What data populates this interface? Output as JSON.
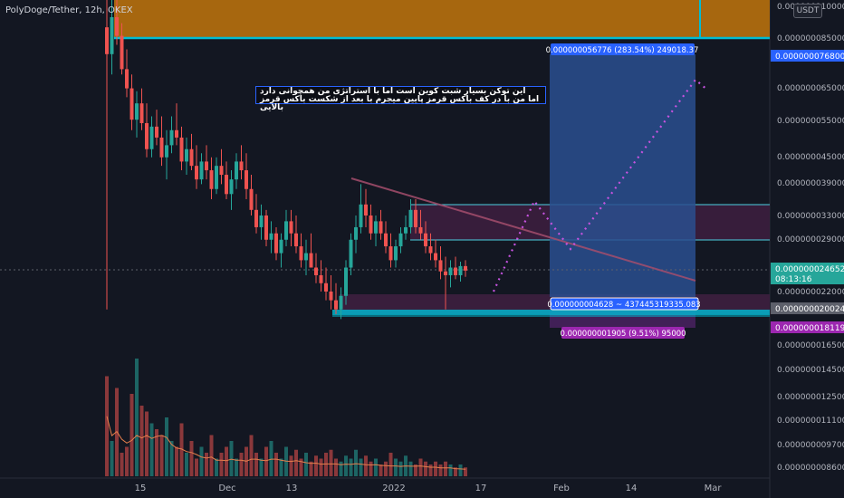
{
  "header": {
    "symbol_line": "PolyDoge/Tether, 12h, OKEX",
    "currency_button": "USDT"
  },
  "annotation": {
    "line1": "این توکن بسیار شبت کوین است اما با استراتژی من همچوانی دارد",
    "line2": "اما من با در کف باکس قرمز پایین میجرم با بعد از شکست باکس قرمز بالایی"
  },
  "colors": {
    "background": "#131722",
    "up": "#26a69a",
    "down": "#ef5350",
    "orange_box": "#b8700d",
    "teal_line": "#00bcd4",
    "blue_box": "#2a4f8f",
    "purple_box": "#3e1f3f",
    "dotted_path": "#c653e0",
    "trendline": "#a54e6d",
    "volume_ma": "#e57f4c"
  },
  "chart_data": {
    "type": "candlestick",
    "interval": "12h",
    "price_axis": {
      "scale": "log",
      "tick_labels": [
        "0.000000110000",
        "0.000000085000",
        "0.000000065000",
        "0.000000055000",
        "0.000000045000",
        "0.000000039000",
        "0.000000033000",
        "0.000000029000",
        "0.000000022000",
        "0.000000016500",
        "0.000000014500",
        "0.000000012500",
        "0.000000011100",
        "0.000000009700",
        "0.000000008600"
      ]
    },
    "price_tags": [
      {
        "label": "0.000000076800",
        "color": "#2962ff"
      },
      {
        "label": "0.000000024652",
        "color": "#26a69a",
        "countdown": "08:13:16"
      },
      {
        "label": "0.000000020024",
        "color": "#5d606b"
      },
      {
        "label": "0.000000018119",
        "color": "#9c27b0"
      }
    ],
    "time_axis": [
      "15",
      "Dec",
      "13",
      "2022",
      "17",
      "Feb",
      "14",
      "Mar"
    ],
    "measure_labels": {
      "upper": "0.000000056776 (283.54%) 249018.37",
      "middle": "0.000000004628 ~ 437445319335.083",
      "lower": "0.000000001905 (9.51%) 95000"
    },
    "candles": [
      [
        9e-08,
        1.15e-07,
        2e-08,
        7.8e-08
      ],
      [
        7.8e-08,
        1.05e-07,
        7e-08,
        9.5e-08
      ],
      [
        9.5e-08,
        1.1e-07,
        8.2e-08,
        8.6e-08
      ],
      [
        8.6e-08,
        9.2e-08,
        7e-08,
        7.2e-08
      ],
      [
        7.2e-08,
        8e-08,
        6.2e-08,
        6.5e-08
      ],
      [
        6.5e-08,
        7e-08,
        5.2e-08,
        5.5e-08
      ],
      [
        5.5e-08,
        6.4e-08,
        5e-08,
        6e-08
      ],
      [
        6e-08,
        6.5e-08,
        5.2e-08,
        5.4e-08
      ],
      [
        5.4e-08,
        6e-08,
        4.5e-08,
        4.7e-08
      ],
      [
        4.7e-08,
        5.6e-08,
        4.5e-08,
        5.3e-08
      ],
      [
        5.3e-08,
        5.8e-08,
        4.8e-08,
        5e-08
      ],
      [
        5e-08,
        5.6e-08,
        4.3e-08,
        4.5e-08
      ],
      [
        4.5e-08,
        5.2e-08,
        4e-08,
        4.8e-08
      ],
      [
        4.8e-08,
        5.6e-08,
        4.6e-08,
        5.2e-08
      ],
      [
        5.2e-08,
        6e-08,
        4.8e-08,
        5e-08
      ],
      [
        5e-08,
        5.3e-08,
        4.2e-08,
        4.4e-08
      ],
      [
        4.4e-08,
        5e-08,
        4.1e-08,
        4.7e-08
      ],
      [
        4.7e-08,
        5.1e-08,
        4.2e-08,
        4.3e-08
      ],
      [
        4.3e-08,
        4.8e-08,
        3.8e-08,
        4e-08
      ],
      [
        4e-08,
        4.6e-08,
        3.9e-08,
        4.4e-08
      ],
      [
        4.4e-08,
        4.8e-08,
        4e-08,
        4.2e-08
      ],
      [
        4.2e-08,
        4.5e-08,
        3.6e-08,
        3.8e-08
      ],
      [
        3.8e-08,
        4.5e-08,
        3.7e-08,
        4.3e-08
      ],
      [
        4.3e-08,
        4.7e-08,
        3.9e-08,
        4.1e-08
      ],
      [
        4.1e-08,
        4.4e-08,
        3.6e-08,
        3.7e-08
      ],
      [
        3.7e-08,
        4.2e-08,
        3.4e-08,
        4e-08
      ],
      [
        4e-08,
        4.6e-08,
        3.8e-08,
        4.4e-08
      ],
      [
        4.4e-08,
        4.8e-08,
        4e-08,
        4.2e-08
      ],
      [
        4.2e-08,
        4.6e-08,
        3.6e-08,
        3.8e-08
      ],
      [
        3.8e-08,
        4.1e-08,
        3.3e-08,
        3.4e-08
      ],
      [
        3.4e-08,
        3.7e-08,
        3e-08,
        3.1e-08
      ],
      [
        3.1e-08,
        3.5e-08,
        2.9e-08,
        3.3e-08
      ],
      [
        3.3e-08,
        3.4e-08,
        2.8e-08,
        2.9e-08
      ],
      [
        2.9e-08,
        3.2e-08,
        2.7e-08,
        3e-08
      ],
      [
        3e-08,
        3.1e-08,
        2.6e-08,
        2.7e-08
      ],
      [
        2.7e-08,
        3e-08,
        2.5e-08,
        2.9e-08
      ],
      [
        2.9e-08,
        3.4e-08,
        2.8e-08,
        3.2e-08
      ],
      [
        3.2e-08,
        3.4e-08,
        2.8e-08,
        3e-08
      ],
      [
        3e-08,
        3.3e-08,
        2.7e-08,
        2.8e-08
      ],
      [
        2.8e-08,
        3e-08,
        2.5e-08,
        2.6e-08
      ],
      [
        2.6e-08,
        2.9e-08,
        2.4e-08,
        2.7e-08
      ],
      [
        2.7e-08,
        3e-08,
        2.5e-08,
        2.5e-08
      ],
      [
        2.5e-08,
        2.7e-08,
        2.3e-08,
        2.4e-08
      ],
      [
        2.4e-08,
        2.6e-08,
        2.2e-08,
        2.3e-08
      ],
      [
        2.3e-08,
        2.5e-08,
        2.1e-08,
        2.2e-08
      ],
      [
        2.2e-08,
        2.4e-08,
        2e-08,
        2.1e-08
      ],
      [
        2.1e-08,
        2.3e-08,
        1.95e-08,
        2e-08
      ],
      [
        2e-08,
        2.25e-08,
        1.9e-08,
        2.15e-08
      ],
      [
        2.15e-08,
        2.6e-08,
        2.05e-08,
        2.5e-08
      ],
      [
        2.5e-08,
        3e-08,
        2.4e-08,
        2.9e-08
      ],
      [
        2.9e-08,
        3.3e-08,
        2.7e-08,
        3.1e-08
      ],
      [
        3.1e-08,
        3.9e-08,
        3e-08,
        3.5e-08
      ],
      [
        3.5e-08,
        3.8e-08,
        3.1e-08,
        3.3e-08
      ],
      [
        3.3e-08,
        3.5e-08,
        2.9e-08,
        3e-08
      ],
      [
        3e-08,
        3.3e-08,
        2.8e-08,
        3.2e-08
      ],
      [
        3.2e-08,
        3.4e-08,
        2.9e-08,
        3e-08
      ],
      [
        3e-08,
        3.2e-08,
        2.7e-08,
        2.8e-08
      ],
      [
        2.8e-08,
        3e-08,
        2.5e-08,
        2.6e-08
      ],
      [
        2.6e-08,
        2.9e-08,
        2.5e-08,
        2.8e-08
      ],
      [
        2.8e-08,
        3.1e-08,
        2.7e-08,
        3e-08
      ],
      [
        3e-08,
        3.3e-08,
        2.9e-08,
        3.1e-08
      ],
      [
        3.1e-08,
        3.6e-08,
        3e-08,
        3.4e-08
      ],
      [
        3.4e-08,
        3.6e-08,
        3e-08,
        3.1e-08
      ],
      [
        3.1e-08,
        3.4e-08,
        2.9e-08,
        3e-08
      ],
      [
        3e-08,
        3.2e-08,
        2.7e-08,
        2.8e-08
      ],
      [
        2.8e-08,
        3e-08,
        2.6e-08,
        2.7e-08
      ],
      [
        2.7e-08,
        2.9e-08,
        2.5e-08,
        2.6e-08
      ],
      [
        2.6e-08,
        2.8e-08,
        2.35e-08,
        2.45e-08
      ],
      [
        2.45e-08,
        2.65e-08,
        2e-08,
        2.4e-08
      ],
      [
        2.4e-08,
        2.6e-08,
        2.25e-08,
        2.5e-08
      ],
      [
        2.5e-08,
        2.65e-08,
        2.35e-08,
        2.4e-08
      ],
      [
        2.4e-08,
        2.58e-08,
        2.32e-08,
        2.52e-08
      ],
      [
        2.52e-08,
        2.6e-08,
        2.38e-08,
        2.46e-08
      ]
    ],
    "volume": [
      34,
      12,
      30,
      8,
      10,
      28,
      40,
      24,
      22,
      18,
      16,
      14,
      20,
      12,
      10,
      18,
      8,
      12,
      6,
      10,
      8,
      14,
      6,
      8,
      10,
      12,
      6,
      8,
      10,
      14,
      8,
      6,
      10,
      12,
      8,
      6,
      10,
      7,
      9,
      6,
      8,
      5,
      7,
      6,
      8,
      9,
      6,
      5,
      7,
      6,
      9,
      6,
      7,
      5,
      6,
      4,
      5,
      8,
      6,
      5,
      7,
      5,
      4,
      6,
      5,
      4,
      5,
      4,
      5,
      4,
      3,
      4,
      3
    ]
  }
}
